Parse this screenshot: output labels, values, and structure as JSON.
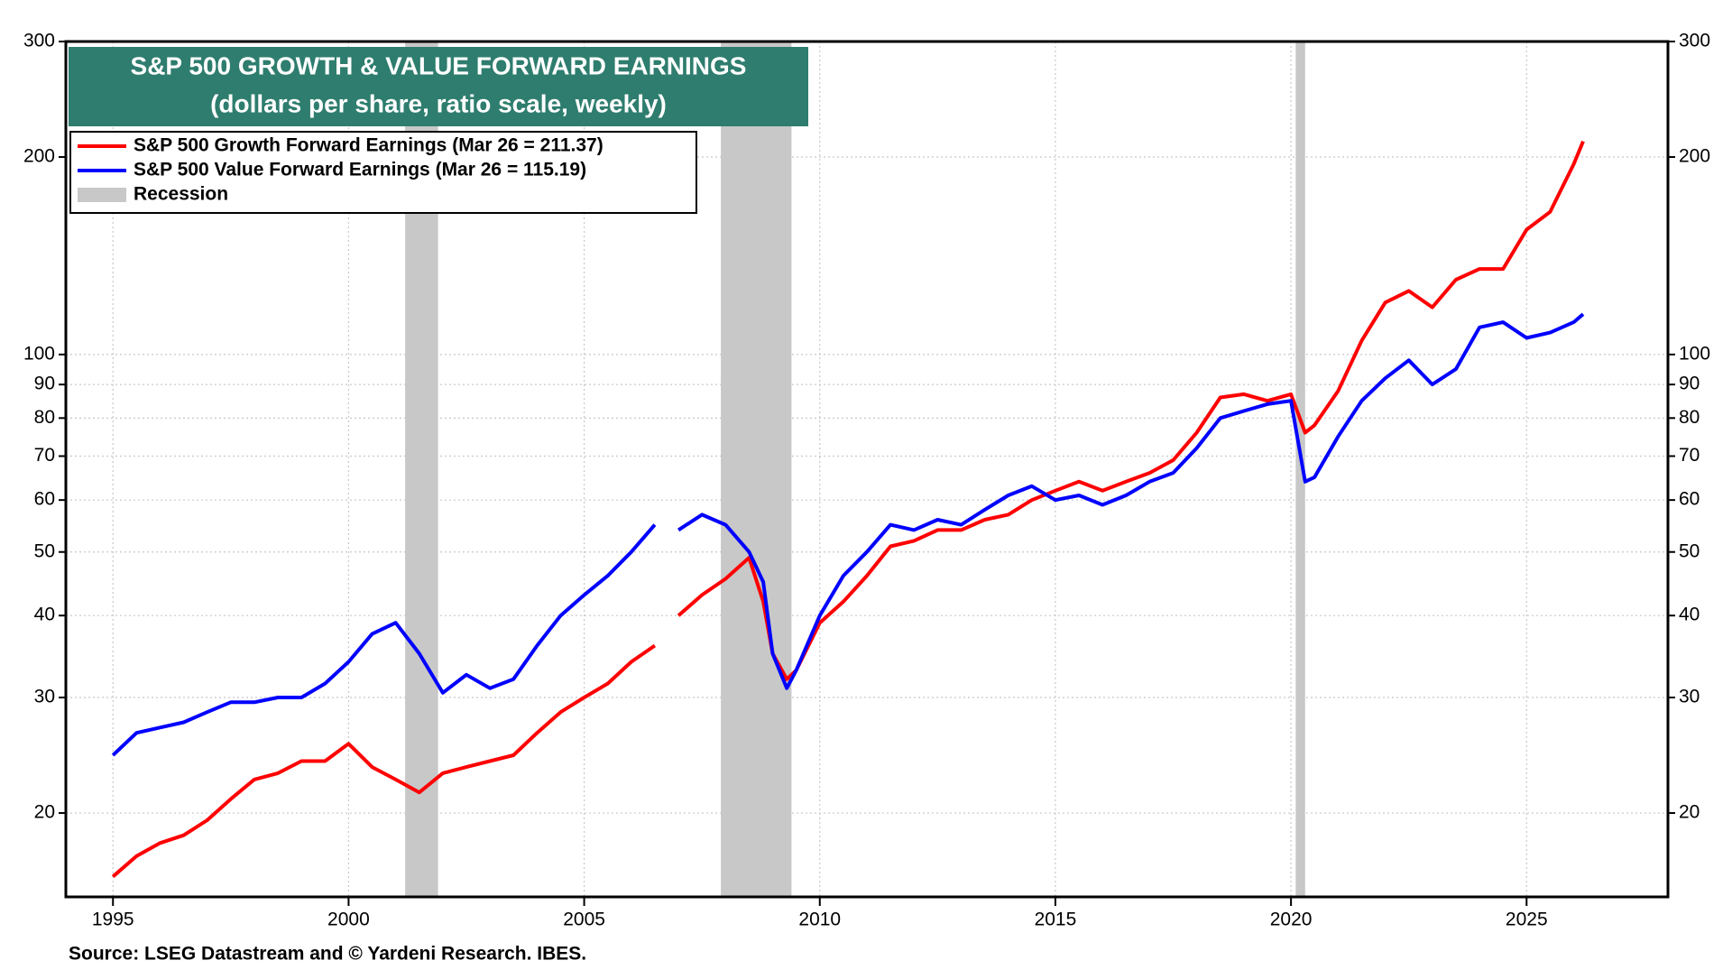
{
  "chart_data": {
    "type": "line",
    "title": "S&P 500 GROWTH & VALUE FORWARD EARNINGS",
    "subtitle": "(dollars per share, ratio scale, weekly)",
    "source": "Source: LSEG Datastream and © Yardeni Research. IBES.",
    "log_scale": true,
    "grid": true,
    "legend": "top-left",
    "xlim": [
      1994,
      2028
    ],
    "xticks": [
      1995,
      2000,
      2005,
      2010,
      2015,
      2020,
      2025
    ],
    "ylim": [
      14.9,
      300
    ],
    "yticks": [
      20,
      30,
      40,
      50,
      60,
      70,
      80,
      90,
      100,
      200,
      300
    ],
    "recession_label": "Recession",
    "recession_color": "#c8c8c8",
    "recessions": [
      [
        2001.2,
        2001.9
      ],
      [
        2007.9,
        2009.4
      ],
      [
        2020.1,
        2020.3
      ]
    ],
    "x": [
      1995,
      1995.5,
      1996,
      1996.5,
      1997,
      1997.5,
      1998,
      1998.5,
      1999,
      1999.5,
      2000,
      2000.5,
      2001,
      2001.5,
      2002,
      2002.5,
      2003,
      2003.5,
      2004,
      2004.5,
      2005,
      2005.5,
      2006,
      2006.5,
      2006.55,
      2007,
      2007.5,
      2008,
      2008.5,
      2008.8,
      2009,
      2009.3,
      2009.5,
      2010,
      2010.5,
      2011,
      2011.5,
      2012,
      2012.5,
      2013,
      2013.5,
      2014,
      2014.5,
      2015,
      2015.5,
      2016,
      2016.5,
      2017,
      2017.5,
      2018,
      2018.5,
      2019,
      2019.5,
      2020,
      2020.3,
      2020.5,
      2021,
      2021.5,
      2022,
      2022.5,
      2023,
      2023.5,
      2024,
      2024.5,
      2025,
      2025.5,
      2026,
      2026.2
    ],
    "series": [
      {
        "name": "S&P 500 Growth Forward Earnings (Mar 26 = 211.37)",
        "color": "#ff0000",
        "values": [
          16,
          17.2,
          18,
          18.5,
          19.5,
          21,
          22.5,
          23,
          24,
          24,
          25.5,
          23.5,
          22.5,
          21.5,
          23,
          23.5,
          24,
          24.5,
          26.5,
          28.5,
          30,
          31.5,
          34,
          36,
          null,
          40,
          43,
          45.5,
          49,
          42,
          35,
          32,
          33,
          39,
          42,
          46,
          51,
          52,
          54,
          54,
          56,
          57,
          60,
          62,
          64,
          62,
          64,
          66,
          69,
          76,
          86,
          87,
          85,
          87,
          76,
          78,
          88,
          105,
          120,
          125,
          118,
          130,
          135,
          135,
          155,
          165,
          195,
          211.37
        ]
      },
      {
        "name": "S&P 500 Value Forward Earnings (Mar 26 = 115.19)",
        "color": "#0000ff",
        "values": [
          24.5,
          26.5,
          27,
          27.5,
          28.5,
          29.5,
          29.5,
          30,
          30,
          31.5,
          34,
          37.5,
          39,
          35,
          30.5,
          32.5,
          31,
          32,
          36,
          40,
          43,
          46,
          50,
          55,
          null,
          54,
          57,
          55,
          50,
          45,
          35,
          31,
          33,
          40,
          46,
          50,
          55,
          54,
          56,
          55,
          58,
          61,
          63,
          60,
          61,
          59,
          61,
          64,
          66,
          72,
          80,
          82,
          84,
          85,
          64,
          65,
          75,
          85,
          92,
          98,
          90,
          95,
          110,
          112,
          106,
          108,
          112,
          115.19
        ]
      }
    ]
  }
}
